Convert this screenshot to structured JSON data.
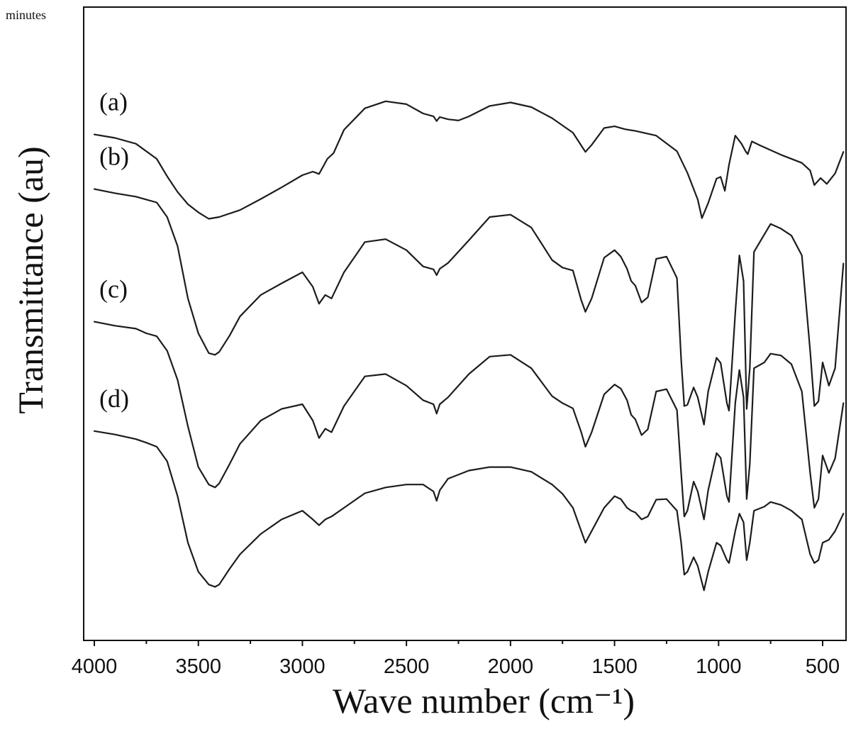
{
  "corner_text": "minutes",
  "chart_data": {
    "type": "line",
    "xlabel": "Wave number (cm⁻¹)",
    "ylabel": "Transmittance (au)",
    "xlim": [
      4000,
      400
    ],
    "x_reversed": true,
    "y_units": "arbitrary",
    "xticks": [
      4000,
      3500,
      3000,
      2500,
      2000,
      1500,
      1000,
      500
    ],
    "xtick_labels": [
      "4000",
      "3500",
      "3000",
      "2500",
      "2000",
      "1500",
      "1000",
      "500"
    ],
    "grid": false,
    "legend": "none",
    "series": [
      {
        "name": "(a)",
        "points": [
          [
            4000,
            0.842
          ],
          [
            3900,
            0.836
          ],
          [
            3800,
            0.826
          ],
          [
            3700,
            0.8
          ],
          [
            3650,
            0.77
          ],
          [
            3600,
            0.743
          ],
          [
            3550,
            0.722
          ],
          [
            3500,
            0.708
          ],
          [
            3450,
            0.697
          ],
          [
            3400,
            0.7
          ],
          [
            3300,
            0.712
          ],
          [
            3200,
            0.731
          ],
          [
            3100,
            0.751
          ],
          [
            3000,
            0.772
          ],
          [
            2950,
            0.778
          ],
          [
            2920,
            0.774
          ],
          [
            2880,
            0.8
          ],
          [
            2850,
            0.81
          ],
          [
            2800,
            0.85
          ],
          [
            2700,
            0.887
          ],
          [
            2600,
            0.899
          ],
          [
            2500,
            0.894
          ],
          [
            2420,
            0.878
          ],
          [
            2370,
            0.873
          ],
          [
            2355,
            0.865
          ],
          [
            2340,
            0.872
          ],
          [
            2300,
            0.868
          ],
          [
            2250,
            0.866
          ],
          [
            2200,
            0.873
          ],
          [
            2100,
            0.891
          ],
          [
            2000,
            0.897
          ],
          [
            1900,
            0.889
          ],
          [
            1800,
            0.87
          ],
          [
            1700,
            0.845
          ],
          [
            1660,
            0.823
          ],
          [
            1640,
            0.812
          ],
          [
            1610,
            0.824
          ],
          [
            1550,
            0.853
          ],
          [
            1500,
            0.856
          ],
          [
            1450,
            0.851
          ],
          [
            1400,
            0.848
          ],
          [
            1300,
            0.84
          ],
          [
            1200,
            0.813
          ],
          [
            1150,
            0.776
          ],
          [
            1100,
            0.73
          ],
          [
            1080,
            0.698
          ],
          [
            1050,
            0.724
          ],
          [
            1010,
            0.766
          ],
          [
            990,
            0.769
          ],
          [
            970,
            0.745
          ],
          [
            950,
            0.79
          ],
          [
            920,
            0.84
          ],
          [
            890,
            0.826
          ],
          [
            870,
            0.813
          ],
          [
            860,
            0.808
          ],
          [
            840,
            0.83
          ],
          [
            800,
            0.823
          ],
          [
            700,
            0.807
          ],
          [
            600,
            0.793
          ],
          [
            560,
            0.78
          ],
          [
            540,
            0.755
          ],
          [
            510,
            0.767
          ],
          [
            480,
            0.757
          ],
          [
            440,
            0.775
          ],
          [
            400,
            0.812
          ]
        ]
      },
      {
        "name": "(b)",
        "points": [
          [
            4000,
            0.748
          ],
          [
            3900,
            0.741
          ],
          [
            3800,
            0.735
          ],
          [
            3750,
            0.73
          ],
          [
            3700,
            0.725
          ],
          [
            3650,
            0.7
          ],
          [
            3600,
            0.65
          ],
          [
            3550,
            0.56
          ],
          [
            3500,
            0.5
          ],
          [
            3450,
            0.466
          ],
          [
            3420,
            0.463
          ],
          [
            3400,
            0.468
          ],
          [
            3350,
            0.496
          ],
          [
            3300,
            0.529
          ],
          [
            3200,
            0.566
          ],
          [
            3100,
            0.586
          ],
          [
            3000,
            0.605
          ],
          [
            2950,
            0.58
          ],
          [
            2920,
            0.551
          ],
          [
            2890,
            0.566
          ],
          [
            2860,
            0.56
          ],
          [
            2800,
            0.605
          ],
          [
            2700,
            0.657
          ],
          [
            2600,
            0.662
          ],
          [
            2500,
            0.643
          ],
          [
            2420,
            0.615
          ],
          [
            2370,
            0.61
          ],
          [
            2355,
            0.6
          ],
          [
            2340,
            0.611
          ],
          [
            2300,
            0.621
          ],
          [
            2200,
            0.66
          ],
          [
            2100,
            0.7
          ],
          [
            2000,
            0.704
          ],
          [
            1900,
            0.682
          ],
          [
            1800,
            0.626
          ],
          [
            1750,
            0.613
          ],
          [
            1700,
            0.608
          ],
          [
            1660,
            0.557
          ],
          [
            1640,
            0.537
          ],
          [
            1610,
            0.56
          ],
          [
            1550,
            0.63
          ],
          [
            1500,
            0.643
          ],
          [
            1470,
            0.632
          ],
          [
            1440,
            0.611
          ],
          [
            1420,
            0.59
          ],
          [
            1400,
            0.582
          ],
          [
            1370,
            0.553
          ],
          [
            1340,
            0.562
          ],
          [
            1300,
            0.628
          ],
          [
            1250,
            0.632
          ],
          [
            1200,
            0.595
          ],
          [
            1180,
            0.455
          ],
          [
            1165,
            0.375
          ],
          [
            1150,
            0.377
          ],
          [
            1120,
            0.407
          ],
          [
            1100,
            0.39
          ],
          [
            1070,
            0.343
          ],
          [
            1050,
            0.4
          ],
          [
            1010,
            0.458
          ],
          [
            990,
            0.449
          ],
          [
            960,
            0.38
          ],
          [
            950,
            0.367
          ],
          [
            920,
            0.535
          ],
          [
            900,
            0.634
          ],
          [
            880,
            0.59
          ],
          [
            865,
            0.37
          ],
          [
            850,
            0.44
          ],
          [
            830,
            0.64
          ],
          [
            780,
            0.67
          ],
          [
            750,
            0.688
          ],
          [
            700,
            0.68
          ],
          [
            650,
            0.668
          ],
          [
            600,
            0.634
          ],
          [
            560,
            0.47
          ],
          [
            540,
            0.375
          ],
          [
            520,
            0.383
          ],
          [
            500,
            0.45
          ],
          [
            470,
            0.41
          ],
          [
            440,
            0.44
          ],
          [
            400,
            0.62
          ]
        ]
      },
      {
        "name": "(c)",
        "points": [
          [
            4000,
            0.52
          ],
          [
            3900,
            0.513
          ],
          [
            3800,
            0.508
          ],
          [
            3750,
            0.5
          ],
          [
            3700,
            0.495
          ],
          [
            3650,
            0.47
          ],
          [
            3600,
            0.42
          ],
          [
            3550,
            0.34
          ],
          [
            3500,
            0.27
          ],
          [
            3450,
            0.24
          ],
          [
            3420,
            0.235
          ],
          [
            3400,
            0.242
          ],
          [
            3350,
            0.275
          ],
          [
            3300,
            0.31
          ],
          [
            3200,
            0.35
          ],
          [
            3100,
            0.37
          ],
          [
            3000,
            0.378
          ],
          [
            2950,
            0.35
          ],
          [
            2920,
            0.32
          ],
          [
            2890,
            0.336
          ],
          [
            2860,
            0.33
          ],
          [
            2800,
            0.375
          ],
          [
            2700,
            0.426
          ],
          [
            2600,
            0.43
          ],
          [
            2500,
            0.41
          ],
          [
            2420,
            0.385
          ],
          [
            2370,
            0.378
          ],
          [
            2355,
            0.362
          ],
          [
            2340,
            0.378
          ],
          [
            2300,
            0.39
          ],
          [
            2200,
            0.43
          ],
          [
            2100,
            0.46
          ],
          [
            2000,
            0.463
          ],
          [
            1900,
            0.44
          ],
          [
            1800,
            0.392
          ],
          [
            1750,
            0.38
          ],
          [
            1700,
            0.371
          ],
          [
            1660,
            0.33
          ],
          [
            1640,
            0.305
          ],
          [
            1610,
            0.33
          ],
          [
            1550,
            0.395
          ],
          [
            1500,
            0.412
          ],
          [
            1470,
            0.405
          ],
          [
            1440,
            0.385
          ],
          [
            1420,
            0.36
          ],
          [
            1400,
            0.352
          ],
          [
            1370,
            0.325
          ],
          [
            1340,
            0.335
          ],
          [
            1300,
            0.4
          ],
          [
            1250,
            0.404
          ],
          [
            1200,
            0.368
          ],
          [
            1180,
            0.26
          ],
          [
            1165,
            0.185
          ],
          [
            1150,
            0.195
          ],
          [
            1120,
            0.245
          ],
          [
            1100,
            0.228
          ],
          [
            1070,
            0.18
          ],
          [
            1050,
            0.23
          ],
          [
            1010,
            0.294
          ],
          [
            990,
            0.286
          ],
          [
            960,
            0.22
          ],
          [
            950,
            0.21
          ],
          [
            920,
            0.38
          ],
          [
            900,
            0.437
          ],
          [
            880,
            0.39
          ],
          [
            865,
            0.215
          ],
          [
            850,
            0.275
          ],
          [
            830,
            0.44
          ],
          [
            780,
            0.45
          ],
          [
            750,
            0.465
          ],
          [
            700,
            0.462
          ],
          [
            650,
            0.447
          ],
          [
            600,
            0.4
          ],
          [
            560,
            0.26
          ],
          [
            540,
            0.2
          ],
          [
            520,
            0.215
          ],
          [
            500,
            0.29
          ],
          [
            470,
            0.26
          ],
          [
            440,
            0.285
          ],
          [
            400,
            0.38
          ]
        ]
      },
      {
        "name": "(d)",
        "points": [
          [
            4000,
            0.332
          ],
          [
            3900,
            0.326
          ],
          [
            3800,
            0.318
          ],
          [
            3750,
            0.312
          ],
          [
            3700,
            0.305
          ],
          [
            3650,
            0.28
          ],
          [
            3600,
            0.22
          ],
          [
            3550,
            0.14
          ],
          [
            3500,
            0.09
          ],
          [
            3450,
            0.068
          ],
          [
            3420,
            0.064
          ],
          [
            3400,
            0.068
          ],
          [
            3350,
            0.095
          ],
          [
            3300,
            0.12
          ],
          [
            3200,
            0.155
          ],
          [
            3100,
            0.18
          ],
          [
            3000,
            0.195
          ],
          [
            2950,
            0.18
          ],
          [
            2920,
            0.17
          ],
          [
            2890,
            0.18
          ],
          [
            2860,
            0.185
          ],
          [
            2800,
            0.2
          ],
          [
            2700,
            0.225
          ],
          [
            2600,
            0.235
          ],
          [
            2500,
            0.24
          ],
          [
            2420,
            0.24
          ],
          [
            2370,
            0.228
          ],
          [
            2355,
            0.212
          ],
          [
            2340,
            0.23
          ],
          [
            2300,
            0.25
          ],
          [
            2200,
            0.264
          ],
          [
            2100,
            0.27
          ],
          [
            2000,
            0.27
          ],
          [
            1900,
            0.262
          ],
          [
            1800,
            0.24
          ],
          [
            1750,
            0.224
          ],
          [
            1700,
            0.2
          ],
          [
            1660,
            0.16
          ],
          [
            1640,
            0.14
          ],
          [
            1610,
            0.16
          ],
          [
            1550,
            0.2
          ],
          [
            1500,
            0.22
          ],
          [
            1470,
            0.215
          ],
          [
            1440,
            0.2
          ],
          [
            1420,
            0.195
          ],
          [
            1400,
            0.192
          ],
          [
            1370,
            0.18
          ],
          [
            1340,
            0.185
          ],
          [
            1300,
            0.214
          ],
          [
            1250,
            0.215
          ],
          [
            1200,
            0.195
          ],
          [
            1180,
            0.14
          ],
          [
            1165,
            0.085
          ],
          [
            1150,
            0.09
          ],
          [
            1120,
            0.115
          ],
          [
            1100,
            0.1
          ],
          [
            1070,
            0.058
          ],
          [
            1050,
            0.09
          ],
          [
            1010,
            0.14
          ],
          [
            990,
            0.135
          ],
          [
            960,
            0.11
          ],
          [
            950,
            0.105
          ],
          [
            920,
            0.16
          ],
          [
            900,
            0.19
          ],
          [
            880,
            0.175
          ],
          [
            865,
            0.11
          ],
          [
            850,
            0.14
          ],
          [
            830,
            0.195
          ],
          [
            780,
            0.202
          ],
          [
            750,
            0.21
          ],
          [
            700,
            0.205
          ],
          [
            650,
            0.195
          ],
          [
            600,
            0.18
          ],
          [
            560,
            0.12
          ],
          [
            540,
            0.105
          ],
          [
            520,
            0.11
          ],
          [
            500,
            0.14
          ],
          [
            470,
            0.145
          ],
          [
            440,
            0.16
          ],
          [
            400,
            0.19
          ]
        ]
      }
    ]
  }
}
